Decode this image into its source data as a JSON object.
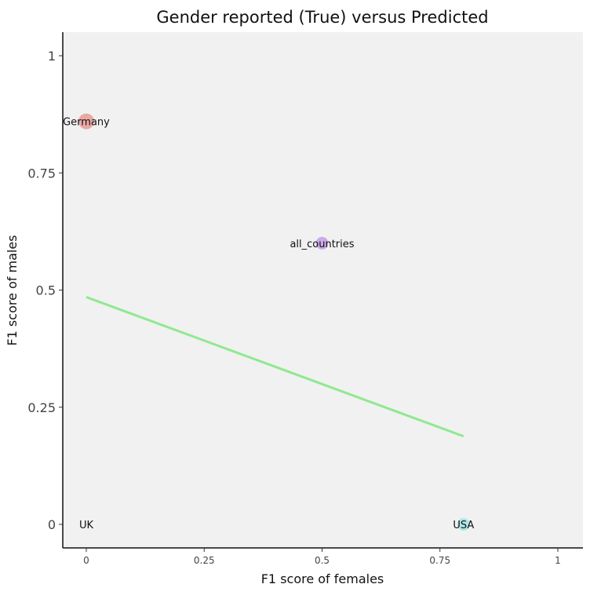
{
  "chart_data": {
    "type": "scatter",
    "title": "Gender reported (True) versus Predicted",
    "xlabel": "F1 score of females",
    "ylabel": "F1 score of males",
    "xlim": [
      -0.05,
      1.05
    ],
    "ylim": [
      -0.05,
      1.05
    ],
    "xticks": [
      0,
      0.25,
      0.5,
      0.75,
      1
    ],
    "xtick_labels": [
      "0",
      "0.25",
      "0.5",
      "0.75",
      "1"
    ],
    "yticks": [
      0,
      0.25,
      0.5,
      0.75,
      1
    ],
    "ytick_labels": [
      "0",
      "0.25",
      "0.5",
      "0.75",
      "1"
    ],
    "grid": false,
    "points": [
      {
        "label": "Germany",
        "x": 0,
        "y": 0.86,
        "color": "#e8a09a",
        "size": 1
      },
      {
        "label": "all_countries",
        "x": 0.5,
        "y": 0.6,
        "color": "#c8a2e6",
        "size": 0.8
      },
      {
        "label": "USA",
        "x": 0.8,
        "y": 0,
        "color": "#a6e4e4",
        "size": 0.8
      },
      {
        "label": "UK",
        "x": 0,
        "y": 0,
        "color": "#9be39b",
        "size": 0.1
      }
    ],
    "trend_line": {
      "x": [
        0,
        0.8
      ],
      "y": [
        0.485,
        0.188
      ],
      "color": "#90e890"
    }
  }
}
